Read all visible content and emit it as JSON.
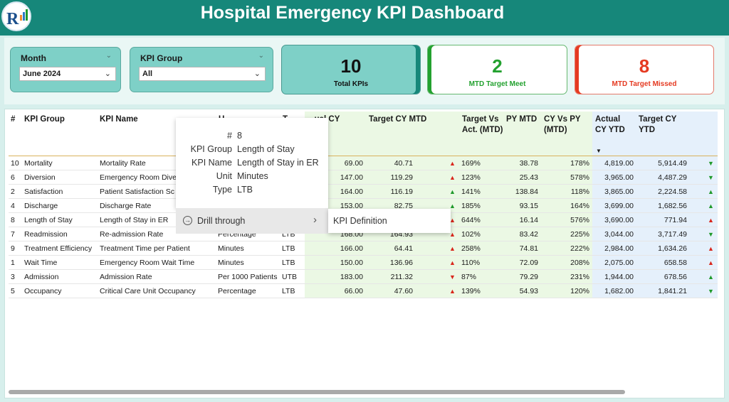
{
  "header": {
    "title": "Hospital Emergency KPI Dashboard",
    "logo_icon": "rk-logo-icon",
    "color": "#16877a"
  },
  "filters": {
    "month": {
      "label": "Month",
      "value": "June 2024"
    },
    "kpi_group": {
      "label": "KPI Group",
      "value": "All"
    }
  },
  "cards": {
    "total": {
      "value": "10",
      "caption": "Total KPIs"
    },
    "meet": {
      "value": "2",
      "caption": "MTD Target Meet",
      "color": "#23a12f"
    },
    "missed": {
      "value": "8",
      "caption": "MTD Target Missed",
      "color": "#e53a21"
    }
  },
  "table": {
    "headers": {
      "idx": "#",
      "group": "KPI Group",
      "name": "KPI Name",
      "unit": "U...",
      "type": "T...",
      "actual_mtd": "...ual CY",
      "target_mtd": "Target CY MTD",
      "tva": "Target Vs Act. (MTD)",
      "py": "PY MTD",
      "cyvspy": "CY Vs PY (MTD)",
      "actual_ytd": "Actual CY YTD",
      "target_ytd": "Target CY YTD"
    },
    "rows": [
      {
        "idx": "10",
        "group": "Mortality",
        "name": "Mortality Rate",
        "unit": "",
        "type": "",
        "actual": "69.00",
        "target": "40.71",
        "mtd_icon": "up-red",
        "tva": "169%",
        "py": "38.78",
        "cyvspy": "178%",
        "actual_ytd": "4,819.00",
        "target_ytd": "5,914.49",
        "ytd_icon": "down-green"
      },
      {
        "idx": "6",
        "group": "Diversion",
        "name": "Emergency Room Dive",
        "unit": "",
        "type": "",
        "actual": "147.00",
        "target": "119.29",
        "mtd_icon": "up-red",
        "tva": "123%",
        "py": "25.43",
        "cyvspy": "578%",
        "actual_ytd": "3,965.00",
        "target_ytd": "4,487.29",
        "ytd_icon": "down-green"
      },
      {
        "idx": "2",
        "group": "Satisfaction",
        "name": "Patient Satisfaction Sc",
        "unit": "",
        "type": "",
        "actual": "164.00",
        "target": "116.19",
        "mtd_icon": "up-green",
        "tva": "141%",
        "py": "138.84",
        "cyvspy": "118%",
        "actual_ytd": "3,865.00",
        "target_ytd": "2,224.58",
        "ytd_icon": "up-green"
      },
      {
        "idx": "4",
        "group": "Discharge",
        "name": "Discharge Rate",
        "unit": "",
        "type": "",
        "actual": "153.00",
        "target": "82.75",
        "mtd_icon": "up-green",
        "tva": "185%",
        "py": "93.15",
        "cyvspy": "164%",
        "actual_ytd": "3,699.00",
        "target_ytd": "1,682.56",
        "ytd_icon": "up-green"
      },
      {
        "idx": "8",
        "group": "Length of Stay",
        "name": "Length of Stay in ER",
        "unit": "",
        "type": "",
        "actual": "",
        "target": "",
        "mtd_icon": "up-red",
        "tva": "644%",
        "py": "16.14",
        "cyvspy": "576%",
        "actual_ytd": "3,690.00",
        "target_ytd": "771.94",
        "ytd_icon": "up-red"
      },
      {
        "idx": "7",
        "group": "Readmission",
        "name": "Re-admission Rate",
        "unit": "Percentage",
        "type": "LTB",
        "actual": "168.00",
        "target": "164.93",
        "mtd_icon": "up-red",
        "tva": "102%",
        "py": "83.42",
        "cyvspy": "225%",
        "actual_ytd": "3,044.00",
        "target_ytd": "3,717.49",
        "ytd_icon": "down-green"
      },
      {
        "idx": "9",
        "group": "Treatment Efficiency",
        "name": "Treatment Time per Patient",
        "unit": "Minutes",
        "type": "LTB",
        "actual": "166.00",
        "target": "64.41",
        "mtd_icon": "up-red",
        "tva": "258%",
        "py": "74.81",
        "cyvspy": "222%",
        "actual_ytd": "2,984.00",
        "target_ytd": "1,634.26",
        "ytd_icon": "up-red"
      },
      {
        "idx": "1",
        "group": "Wait Time",
        "name": "Emergency Room Wait Time",
        "unit": "Minutes",
        "type": "LTB",
        "actual": "150.00",
        "target": "136.96",
        "mtd_icon": "up-red",
        "tva": "110%",
        "py": "72.09",
        "cyvspy": "208%",
        "actual_ytd": "2,075.00",
        "target_ytd": "658.58",
        "ytd_icon": "up-red"
      },
      {
        "idx": "3",
        "group": "Admission",
        "name": "Admission Rate",
        "unit": "Per 1000 Patients",
        "type": "UTB",
        "actual": "183.00",
        "target": "211.32",
        "mtd_icon": "down-red",
        "tva": "87%",
        "py": "79.29",
        "cyvspy": "231%",
        "actual_ytd": "1,944.00",
        "target_ytd": "678.56",
        "ytd_icon": "up-green"
      },
      {
        "idx": "5",
        "group": "Occupancy",
        "name": "Critical Care Unit Occupancy",
        "unit": "Percentage",
        "type": "LTB",
        "actual": "66.00",
        "target": "47.60",
        "mtd_icon": "up-red",
        "tva": "139%",
        "py": "54.93",
        "cyvspy": "120%",
        "actual_ytd": "1,682.00",
        "target_ytd": "1,841.21",
        "ytd_icon": "down-green"
      }
    ]
  },
  "tooltip": {
    "items": [
      {
        "key": "#",
        "value": "8"
      },
      {
        "key": "KPI Group",
        "value": "Length of Stay"
      },
      {
        "key": "KPI Name",
        "value": "Length of Stay in ER"
      },
      {
        "key": "Unit",
        "value": "Minutes"
      },
      {
        "key": "Type",
        "value": "LTB"
      }
    ],
    "drill_label": "Drill through",
    "submenu_item": "KPI Definition"
  }
}
